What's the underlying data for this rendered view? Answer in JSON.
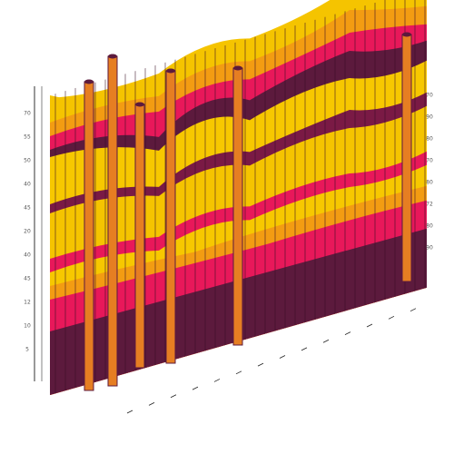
{
  "left_labels": [
    "70",
    "55",
    "50",
    "40",
    "45",
    "20",
    "40",
    "45",
    "12",
    "10",
    "5"
  ],
  "right_labels": [
    "70",
    "90",
    "80",
    "70",
    "80",
    "72",
    "80",
    "90"
  ]
}
